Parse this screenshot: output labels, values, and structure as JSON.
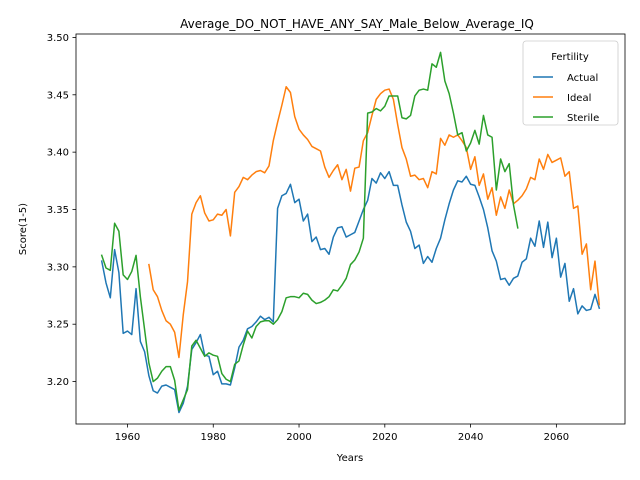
{
  "chart_data": {
    "type": "line",
    "title": "Average_DO_NOT_HAVE_ANY_SAY_Male_Below_Average_IQ",
    "xlabel": "Years",
    "ylabel": "Score(1-5)",
    "xlim": [
      1948,
      2076
    ],
    "ylim": [
      3.163,
      3.503
    ],
    "xticks": [
      1960,
      1980,
      2000,
      2020,
      2040,
      2060
    ],
    "yticks": [
      3.2,
      3.25,
      3.3,
      3.35,
      3.4,
      3.45,
      3.5
    ],
    "ytick_labels": [
      "3.20",
      "3.25",
      "3.30",
      "3.35",
      "3.40",
      "3.45",
      "3.50"
    ],
    "legend": {
      "title": "Fertility",
      "position": "top-right"
    },
    "series": [
      {
        "name": "Actual",
        "color": "#1f77b4",
        "x": [
          1954,
          1955,
          1956,
          1957,
          1958,
          1959,
          1960,
          1961,
          1962,
          1963,
          1964,
          1965,
          1966,
          1967,
          1968,
          1969,
          1970,
          1971,
          1972,
          1973,
          1974,
          1975,
          1976,
          1977,
          1978,
          1979,
          1980,
          1981,
          1982,
          1983,
          1984,
          1985,
          1986,
          1987,
          1988,
          1989,
          1990,
          1991,
          1992,
          1993,
          1994,
          1995,
          1996,
          1997,
          1998,
          1999,
          2000,
          2001,
          2002,
          2003,
          2004,
          2005,
          2006,
          2007,
          2008,
          2009,
          2010,
          2011,
          2012,
          2013,
          2014,
          2015,
          2016,
          2017,
          2018,
          2019,
          2020,
          2021,
          2022,
          2023,
          2024,
          2025,
          2026,
          2027,
          2028,
          2029,
          2030,
          2031,
          2032,
          2033,
          2034,
          2035,
          2036,
          2037,
          2038,
          2039,
          2040,
          2041,
          2042,
          2043,
          2044,
          2045,
          2046,
          2047,
          2048,
          2049,
          2050,
          2051,
          2052,
          2053,
          2054,
          2055,
          2056,
          2057,
          2058,
          2059,
          2060,
          2061,
          2062,
          2063,
          2064,
          2065,
          2066,
          2067,
          2068,
          2069,
          2070
        ],
        "y": [
          3.305,
          3.286,
          3.273,
          3.315,
          3.295,
          3.242,
          3.244,
          3.241,
          3.281,
          3.235,
          3.226,
          3.205,
          3.192,
          3.19,
          3.196,
          3.197,
          3.195,
          3.193,
          3.173,
          3.181,
          3.196,
          3.228,
          3.234,
          3.241,
          3.223,
          3.222,
          3.206,
          3.209,
          3.198,
          3.198,
          3.197,
          3.212,
          3.23,
          3.236,
          3.246,
          3.248,
          3.252,
          3.257,
          3.254,
          3.256,
          3.252,
          3.351,
          3.362,
          3.364,
          3.372,
          3.356,
          3.359,
          3.34,
          3.346,
          3.322,
          3.326,
          3.315,
          3.316,
          3.311,
          3.326,
          3.334,
          3.335,
          3.326,
          3.328,
          3.33,
          3.34,
          3.35,
          3.358,
          3.377,
          3.373,
          3.382,
          3.377,
          3.383,
          3.371,
          3.371,
          3.354,
          3.339,
          3.331,
          3.316,
          3.319,
          3.303,
          3.309,
          3.304,
          3.316,
          3.325,
          3.341,
          3.355,
          3.367,
          3.375,
          3.374,
          3.379,
          3.372,
          3.371,
          3.361,
          3.35,
          3.334,
          3.314,
          3.305,
          3.289,
          3.29,
          3.284,
          3.29,
          3.292,
          3.304,
          3.307,
          3.325,
          3.318,
          3.34,
          3.317,
          3.339,
          3.308,
          3.325,
          3.291,
          3.303,
          3.27,
          3.281,
          3.259,
          3.266,
          3.262,
          3.263,
          3.276,
          3.264
        ]
      },
      {
        "name": "Ideal",
        "color": "#ff7f0e",
        "x": [
          1965,
          1966,
          1967,
          1968,
          1969,
          1970,
          1971,
          1972,
          1973,
          1974,
          1975,
          1976,
          1977,
          1978,
          1979,
          1980,
          1981,
          1982,
          1983,
          1984,
          1985,
          1986,
          1987,
          1988,
          1989,
          1990,
          1991,
          1992,
          1993,
          1994,
          1995,
          1996,
          1997,
          1998,
          1999,
          2000,
          2001,
          2002,
          2003,
          2004,
          2005,
          2006,
          2007,
          2008,
          2009,
          2010,
          2011,
          2012,
          2013,
          2014,
          2015,
          2016,
          2017,
          2018,
          2019,
          2020,
          2021,
          2022,
          2023,
          2024,
          2025,
          2026,
          2027,
          2028,
          2029,
          2030,
          2031,
          2032,
          2033,
          2034,
          2035,
          2036,
          2037,
          2038,
          2039,
          2040,
          2041,
          2042,
          2043,
          2044,
          2045,
          2046,
          2047,
          2048,
          2049,
          2050,
          2051,
          2052,
          2053,
          2054,
          2055,
          2056,
          2057,
          2058,
          2059,
          2060,
          2061,
          2062,
          2063,
          2064,
          2065,
          2066,
          2067,
          2068,
          2069,
          2070
        ],
        "y": [
          3.302,
          3.28,
          3.274,
          3.262,
          3.253,
          3.25,
          3.243,
          3.221,
          3.258,
          3.287,
          3.346,
          3.356,
          3.362,
          3.347,
          3.34,
          3.341,
          3.346,
          3.345,
          3.35,
          3.327,
          3.365,
          3.37,
          3.378,
          3.376,
          3.38,
          3.383,
          3.384,
          3.382,
          3.388,
          3.41,
          3.426,
          3.441,
          3.457,
          3.452,
          3.431,
          3.42,
          3.415,
          3.411,
          3.405,
          3.403,
          3.401,
          3.387,
          3.378,
          3.384,
          3.389,
          3.376,
          3.385,
          3.366,
          3.386,
          3.387,
          3.41,
          3.417,
          3.432,
          3.446,
          3.451,
          3.454,
          3.455,
          3.446,
          3.424,
          3.404,
          3.394,
          3.379,
          3.38,
          3.376,
          3.377,
          3.369,
          3.383,
          3.381,
          3.412,
          3.406,
          3.415,
          3.413,
          3.415,
          3.41,
          3.404,
          3.385,
          3.396,
          3.371,
          3.381,
          3.359,
          3.369,
          3.345,
          3.361,
          3.351,
          3.367,
          3.355,
          3.358,
          3.362,
          3.368,
          3.378,
          3.376,
          3.394,
          3.385,
          3.398,
          3.391,
          3.393,
          3.395,
          3.379,
          3.383,
          3.351,
          3.353,
          3.311,
          3.32,
          3.28,
          3.305,
          3.267
        ]
      },
      {
        "name": "Sterile",
        "color": "#2ca02c",
        "x": [
          1954,
          1955,
          1956,
          1957,
          1958,
          1959,
          1960,
          1961,
          1962,
          1963,
          1964,
          1965,
          1966,
          1967,
          1968,
          1969,
          1970,
          1971,
          1972,
          1973,
          1974,
          1975,
          1976,
          1977,
          1978,
          1979,
          1980,
          1981,
          1982,
          1983,
          1984,
          1985,
          1986,
          1987,
          1988,
          1989,
          1990,
          1991,
          1992,
          1993,
          1994,
          1995,
          1996,
          1997,
          1998,
          1999,
          2000,
          2001,
          2002,
          2003,
          2004,
          2005,
          2006,
          2007,
          2008,
          2009,
          2010,
          2011,
          2012,
          2013,
          2014,
          2015,
          2016,
          2017,
          2018,
          2019,
          2020,
          2021,
          2022,
          2023,
          2024,
          2025,
          2026,
          2027,
          2028,
          2029,
          2030,
          2031,
          2032,
          2033,
          2034,
          2035,
          2036,
          2037,
          2038,
          2039,
          2040,
          2041,
          2042,
          2043,
          2044,
          2045,
          2046,
          2047,
          2048,
          2049,
          2050,
          2051
        ],
        "y": [
          3.31,
          3.299,
          3.297,
          3.338,
          3.331,
          3.293,
          3.289,
          3.296,
          3.31,
          3.274,
          3.245,
          3.216,
          3.2,
          3.203,
          3.209,
          3.213,
          3.213,
          3.201,
          3.175,
          3.184,
          3.193,
          3.231,
          3.236,
          3.229,
          3.222,
          3.225,
          3.223,
          3.222,
          3.207,
          3.202,
          3.2,
          3.215,
          3.218,
          3.232,
          3.244,
          3.238,
          3.248,
          3.252,
          3.253,
          3.253,
          3.25,
          3.254,
          3.261,
          3.273,
          3.274,
          3.274,
          3.273,
          3.277,
          3.276,
          3.271,
          3.268,
          3.269,
          3.271,
          3.274,
          3.28,
          3.279,
          3.284,
          3.29,
          3.302,
          3.306,
          3.313,
          3.325,
          3.434,
          3.435,
          3.438,
          3.436,
          3.44,
          3.449,
          3.449,
          3.449,
          3.43,
          3.429,
          3.432,
          3.449,
          3.454,
          3.455,
          3.454,
          3.477,
          3.474,
          3.487,
          3.462,
          3.451,
          3.434,
          3.415,
          3.417,
          3.401,
          3.408,
          3.419,
          3.407,
          3.432,
          3.415,
          3.413,
          3.367,
          3.394,
          3.383,
          3.39,
          3.354,
          3.334
        ]
      }
    ]
  }
}
